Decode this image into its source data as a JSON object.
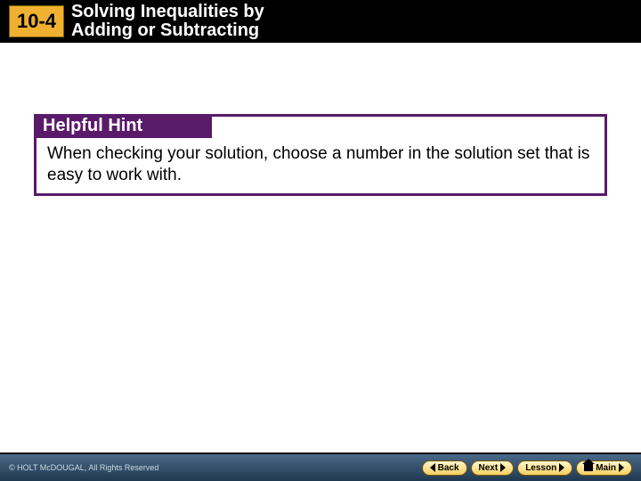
{
  "header": {
    "lesson_number": "10-4",
    "title_line1": "Solving Inequalities by",
    "title_line2": "Adding or Subtracting"
  },
  "hint": {
    "label": "Helpful Hint",
    "body": "When checking your solution, choose a number in the solution set that is easy to work with."
  },
  "footer": {
    "copyright": "© HOLT McDOUGAL, All Rights Reserved",
    "back": "Back",
    "next": "Next",
    "lesson": "Lesson",
    "main": "Main"
  },
  "colors": {
    "badge_bg": "#f0b030",
    "header_bg": "#000000",
    "hint_border": "#5a1a6a",
    "hint_label_bg": "#5a1a6a",
    "footer_grad_top": "#4a6a88",
    "footer_grad_bottom": "#203850",
    "btn_grad_top": "#fff6cc",
    "btn_grad_bottom": "#f5d060"
  }
}
